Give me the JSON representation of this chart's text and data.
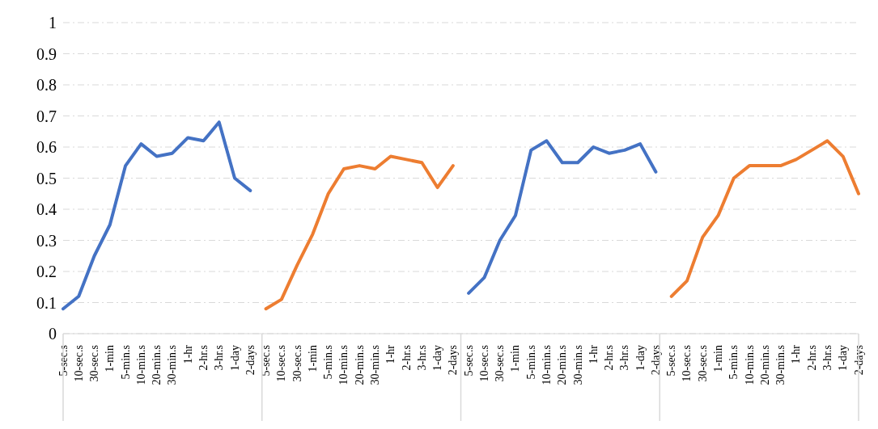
{
  "chart_data": {
    "type": "line",
    "categories": [
      "5-sec.s",
      "10-sec.s",
      "30-sec.s",
      "1-min",
      "5-min.s",
      "10-min.s",
      "20-min.s",
      "30-min.s",
      "1-hr",
      "2-hr.s",
      "3-hr.s",
      "1-day",
      "2-days",
      "5-sec.s",
      "10-sec.s",
      "30-sec.s",
      "1-min",
      "5-min.s",
      "10-min.s",
      "20-min.s",
      "30-min.s",
      "1-hr",
      "2-hr.s",
      "3-hr.s",
      "1-day",
      "2-days",
      "5-sec.s",
      "10-sec.s",
      "30-sec.s",
      "1-min",
      "5-min.s",
      "10-min.s",
      "20-min.s",
      "30-min.s",
      "1-hr",
      "2-hr.s",
      "3-hr.s",
      "1-day",
      "2-days",
      "5-sec.s",
      "10-sec.s",
      "30-sec.s",
      "1-min",
      "5-min.s",
      "10-min.s",
      "20-min.s",
      "30-min.s",
      "1-hr",
      "2-hr.s",
      "3-hr.s",
      "1-day",
      "2-days"
    ],
    "series": [
      {
        "color": "#4472c4",
        "values": [
          0.08,
          0.12,
          0.25,
          0.35,
          0.54,
          0.61,
          0.57,
          0.58,
          0.63,
          0.62,
          0.68,
          0.5,
          0.46,
          null,
          null,
          null,
          null,
          null,
          null,
          null,
          null,
          null,
          null,
          null,
          null,
          null,
          null,
          null,
          null,
          null,
          null,
          null,
          null,
          null,
          null,
          null,
          null,
          null,
          null,
          null,
          null,
          null,
          null,
          null,
          null,
          null,
          null,
          null,
          null,
          null,
          null,
          null
        ]
      },
      {
        "color": "#ed7d31",
        "values": [
          null,
          null,
          null,
          null,
          null,
          null,
          null,
          null,
          null,
          null,
          null,
          null,
          null,
          0.08,
          0.11,
          0.22,
          0.32,
          0.45,
          0.53,
          0.54,
          0.53,
          0.57,
          0.56,
          0.55,
          0.47,
          0.54,
          null,
          null,
          null,
          null,
          null,
          null,
          null,
          null,
          null,
          null,
          null,
          null,
          null,
          null,
          null,
          null,
          null,
          null,
          null,
          null,
          null,
          null,
          null,
          null,
          null,
          null
        ]
      },
      {
        "color": "#4472c4",
        "values": [
          null,
          null,
          null,
          null,
          null,
          null,
          null,
          null,
          null,
          null,
          null,
          null,
          null,
          null,
          null,
          null,
          null,
          null,
          null,
          null,
          null,
          null,
          null,
          null,
          null,
          null,
          0.13,
          0.18,
          0.3,
          0.38,
          0.59,
          0.62,
          0.55,
          0.55,
          0.6,
          0.58,
          0.59,
          0.61,
          0.52,
          null,
          null,
          null,
          null,
          null,
          null,
          null,
          null,
          null,
          null,
          null,
          null,
          null
        ]
      },
      {
        "color": "#ed7d31",
        "values": [
          null,
          null,
          null,
          null,
          null,
          null,
          null,
          null,
          null,
          null,
          null,
          null,
          null,
          null,
          null,
          null,
          null,
          null,
          null,
          null,
          null,
          null,
          null,
          null,
          null,
          null,
          null,
          null,
          null,
          null,
          null,
          null,
          null,
          null,
          null,
          null,
          null,
          null,
          null,
          0.12,
          0.17,
          0.31,
          0.38,
          0.5,
          0.54,
          0.54,
          0.54,
          0.56,
          0.59,
          0.62,
          0.57,
          0.45
        ]
      }
    ],
    "ylim": [
      0,
      1
    ],
    "yticks": [
      0,
      0.1,
      0.2,
      0.3,
      0.4,
      0.5,
      0.6,
      0.7,
      0.8,
      0.9,
      1
    ],
    "grid": "y",
    "legend": false,
    "marker": "none",
    "line_style": "solid"
  }
}
